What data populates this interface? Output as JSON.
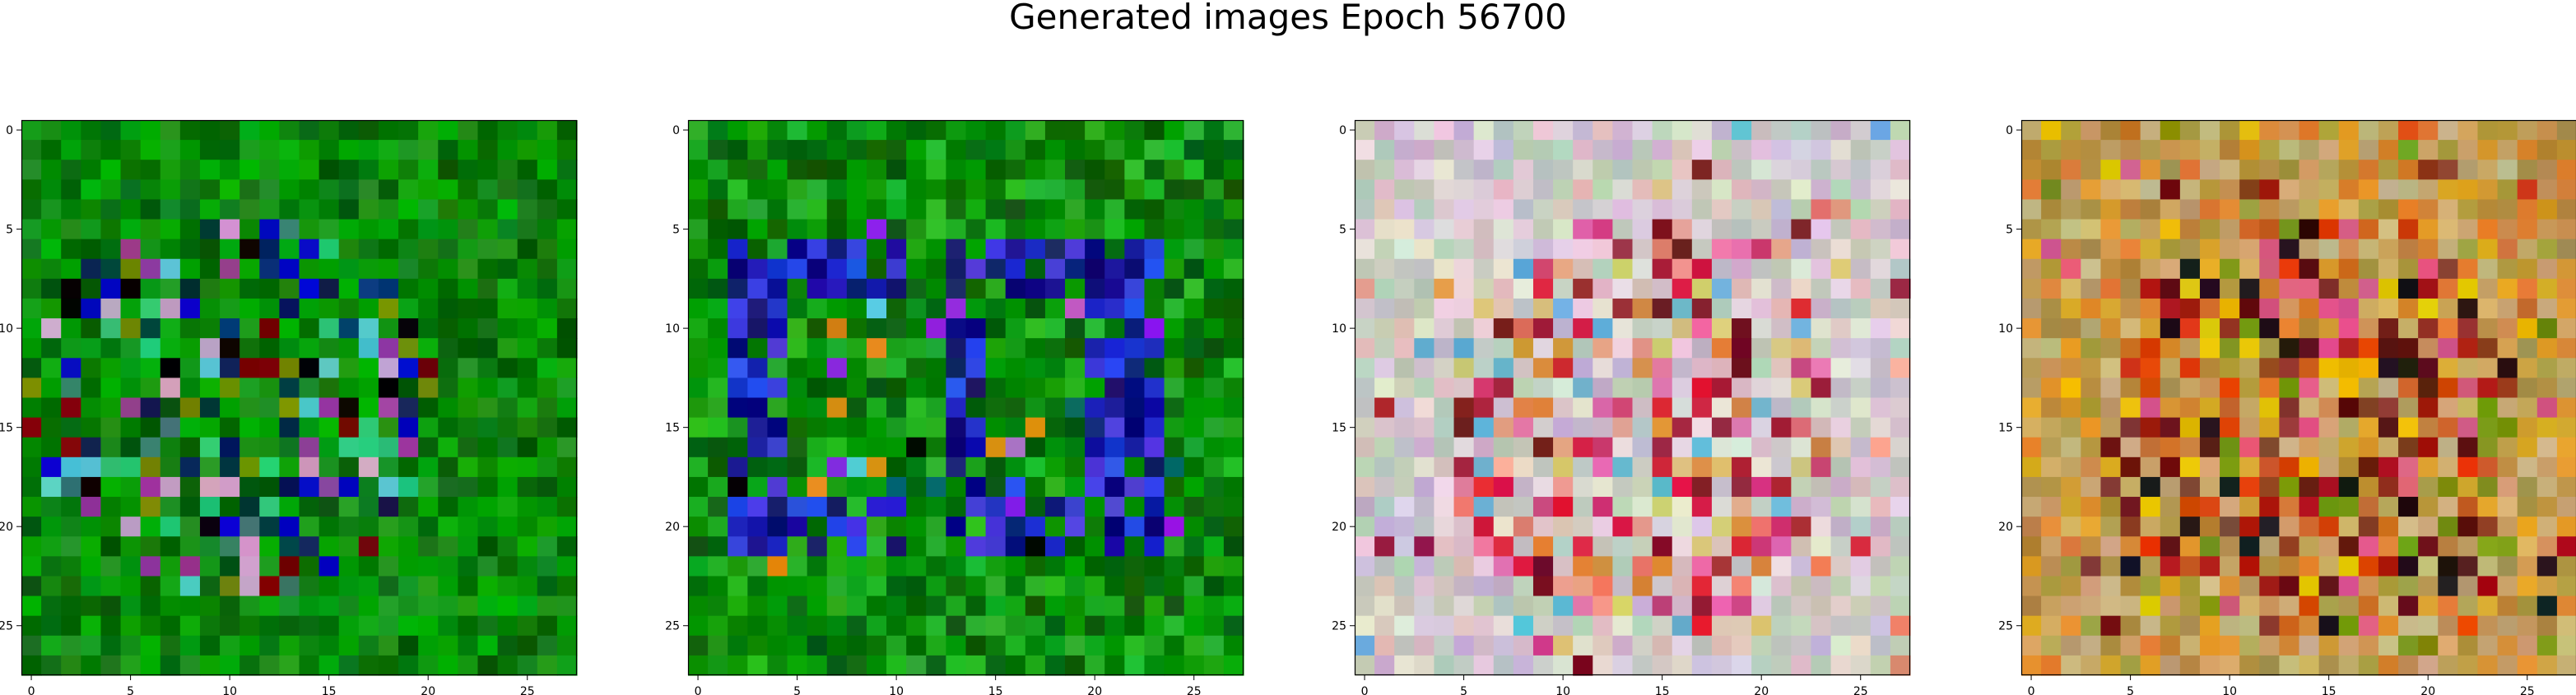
{
  "figure": {
    "title": "Generated images Epoch 56700"
  },
  "chart_data": {
    "type": "heatmap",
    "title": "Generated images Epoch 56700",
    "panels": [
      {
        "kind": "image",
        "grid": [
          28,
          28
        ],
        "palette": "green-dominant with blue/black/teal/pink accents",
        "xticks": [
          "0",
          "5",
          "10",
          "15",
          "20",
          "25"
        ],
        "yticks": [
          "0",
          "5",
          "10",
          "15",
          "20",
          "25"
        ],
        "xlim": [
          -0.5,
          27.5
        ],
        "ylim": [
          27.5,
          -0.5
        ]
      },
      {
        "kind": "image",
        "grid": [
          28,
          28
        ],
        "palette": "green background with blue shapes",
        "xticks": [
          "0",
          "5",
          "10",
          "15",
          "20",
          "25"
        ],
        "yticks": [
          "0",
          "5",
          "10",
          "15",
          "20",
          "25"
        ],
        "xlim": [
          -0.5,
          27.5
        ],
        "ylim": [
          27.5,
          -0.5
        ]
      },
      {
        "kind": "image",
        "grid": [
          28,
          28
        ],
        "palette": "pastel pink/lilac/cream with red and orange",
        "xticks": [
          "0",
          "5",
          "10",
          "15",
          "20",
          "25"
        ],
        "yticks": [
          "0",
          "5",
          "10",
          "15",
          "20",
          "25"
        ],
        "xlim": [
          -0.5,
          27.5
        ],
        "ylim": [
          27.5,
          -0.5
        ]
      },
      {
        "kind": "image",
        "grid": [
          28,
          28
        ],
        "palette": "ochre/orange/olive with red and beige",
        "xticks": [
          "0",
          "5",
          "10",
          "15",
          "20",
          "25"
        ],
        "yticks": [
          "0",
          "5",
          "10",
          "15",
          "20",
          "25"
        ],
        "xlim": [
          -0.5,
          27.5
        ],
        "ylim": [
          27.5,
          -0.5
        ]
      }
    ]
  }
}
